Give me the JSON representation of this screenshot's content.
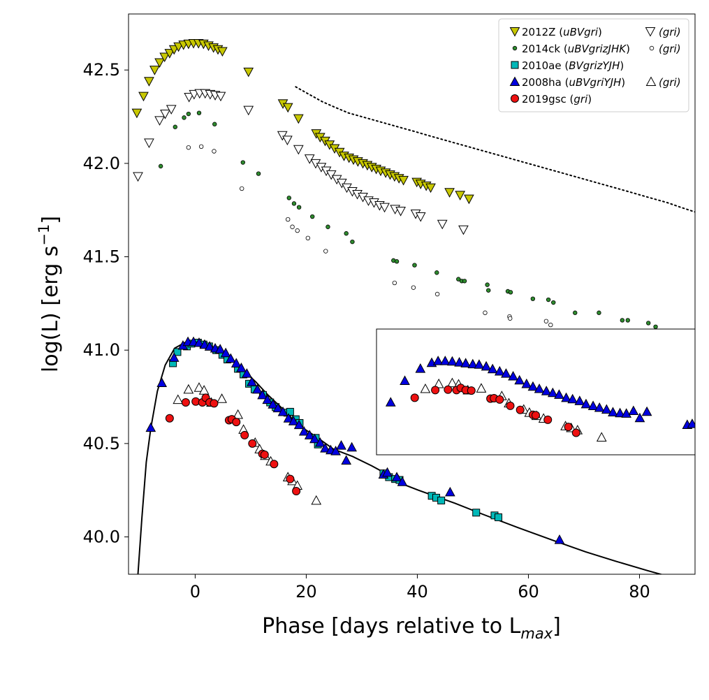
{
  "chart_data": {
    "type": "scatter",
    "xlabel": "Phase [days relative to L_max]",
    "xlabel_main": "Phase [days relative to L",
    "xlabel_sub": "max",
    "xlabel_end": "]",
    "ylabel": "log(L) [erg s^-1]",
    "ylabel_main": "log(L) [erg s",
    "ylabel_sup": "−1",
    "ylabel_end": "]",
    "xlim": [
      -12,
      90
    ],
    "ylim": [
      39.8,
      42.8
    ],
    "xticks": [
      0,
      20,
      40,
      60,
      80
    ],
    "xtick_labels": [
      "0",
      "20",
      "40",
      "60",
      "80"
    ],
    "yticks": [
      40.0,
      40.5,
      41.0,
      41.5,
      42.0,
      42.5
    ],
    "ytick_labels": [
      "40.0",
      "40.5",
      "41.0",
      "41.5",
      "42.0",
      "42.5"
    ],
    "legend_position": "top-right",
    "legend": {
      "sn2012Z_name": "2012Z (",
      "sn2012Z_bands": "uBVgri",
      "sn2012Z_alt": "(gri)",
      "sn2014ck_name": "2014ck (",
      "sn2014ck_bands": "uBVgrizJHK",
      "sn2014ck_alt": "(gri)",
      "sn2010ae_name": "2010ae (",
      "sn2010ae_bands": "BVgrizYJH",
      "sn2008ha_name": "2008ha (",
      "sn2008ha_bands": "uBVgriYJH",
      "sn2008ha_alt": "(gri)",
      "sn2019gsc_name": "2019gsc (",
      "sn2019gsc_bands": "gri",
      "close_paren": ")"
    },
    "series": [
      {
        "name": "2012Z uBVgri",
        "marker": "triangle-down",
        "color": "#c8c800",
        "x": [
          -10.5,
          -9.3,
          -8.3,
          -7.3,
          -6.4,
          -5.5,
          -4.6,
          -3.8,
          -3.0,
          -2.1,
          -1.2,
          -0.3,
          0.6,
          1.5,
          2.4,
          3.3,
          4.1,
          4.9,
          9.6,
          15.8,
          16.7,
          18.6,
          21.8,
          22.5,
          23.4,
          24.2,
          25.1,
          26.0,
          26.8,
          27.7,
          28.5,
          29.3,
          30.2,
          31.0,
          31.8,
          32.6,
          33.4,
          34.3,
          35.1,
          35.9,
          36.7,
          37.5,
          39.9,
          40.6,
          41.6,
          42.4,
          45.8,
          47.7,
          49.3
        ],
        "y": [
          42.27,
          42.36,
          42.44,
          42.5,
          42.54,
          42.57,
          42.59,
          42.61,
          42.625,
          42.635,
          42.64,
          42.643,
          42.643,
          42.64,
          42.63,
          42.62,
          42.61,
          42.6,
          42.49,
          42.32,
          42.3,
          42.24,
          42.16,
          42.14,
          42.12,
          42.1,
          42.08,
          42.06,
          42.04,
          42.03,
          42.02,
          42.01,
          42.0,
          41.99,
          41.98,
          41.97,
          41.96,
          41.95,
          41.94,
          41.93,
          41.92,
          41.91,
          41.9,
          41.89,
          41.88,
          41.87,
          41.845,
          41.83,
          41.81
        ]
      },
      {
        "name": "2012Z gri",
        "marker": "triangle-down-open",
        "color": "#ffffff",
        "x": [
          -10.3,
          -8.3,
          -6.4,
          -5.4,
          -4.3,
          -1.1,
          -0.2,
          0.8,
          1.8,
          2.7,
          3.6,
          4.6,
          9.6,
          15.7,
          16.6,
          18.6,
          20.6,
          21.7,
          22.7,
          23.6,
          24.5,
          25.5,
          26.4,
          27.3,
          28.3,
          29.2,
          30.2,
          31.2,
          32.2,
          33.2,
          34.1,
          36.0,
          37.0,
          39.7,
          40.6,
          44.5,
          48.3
        ],
        "y": [
          41.93,
          42.11,
          42.23,
          42.265,
          42.29,
          42.355,
          42.37,
          42.375,
          42.375,
          42.37,
          42.365,
          42.36,
          42.285,
          42.15,
          42.125,
          42.075,
          42.025,
          42.0,
          41.98,
          41.96,
          41.94,
          41.915,
          41.895,
          41.87,
          41.85,
          41.835,
          41.82,
          41.8,
          41.79,
          41.775,
          41.765,
          41.755,
          41.745,
          41.73,
          41.715,
          41.675,
          41.645
        ]
      },
      {
        "name": "2014ck uBVgrizJHK",
        "marker": "dot",
        "color": "#2e8b2e",
        "x": [
          -6.2,
          -3.6,
          -2.0,
          -1.2,
          0.7,
          3.5,
          8.6,
          11.4,
          16.9,
          17.8,
          18.7,
          21.1,
          23.9,
          27.2,
          28.3,
          35.7,
          36.3,
          39.5,
          43.5,
          47.4,
          48.0,
          48.5,
          52.6,
          52.8,
          56.3,
          56.8,
          60.8,
          63.6,
          64.5,
          68.4,
          72.7,
          76.9,
          77.9,
          81.6,
          82.9
        ],
        "y": [
          41.985,
          42.195,
          42.245,
          42.265,
          42.27,
          42.21,
          42.005,
          41.945,
          41.815,
          41.785,
          41.765,
          41.715,
          41.66,
          41.625,
          41.58,
          41.48,
          41.475,
          41.455,
          41.415,
          41.38,
          41.37,
          41.37,
          41.35,
          41.32,
          41.315,
          41.31,
          41.275,
          41.27,
          41.255,
          41.2,
          41.2,
          41.16,
          41.16,
          41.145,
          41.125
        ]
      },
      {
        "name": "2014ck gri",
        "marker": "dot-open",
        "color": "#ffffff",
        "x": [
          -1.2,
          1.1,
          3.4,
          8.4,
          16.7,
          17.5,
          18.4,
          20.3,
          23.5,
          35.9,
          39.3,
          43.6,
          52.2,
          56.6,
          56.7,
          63.2,
          64.0
        ],
        "y": [
          42.085,
          42.09,
          42.065,
          41.865,
          41.7,
          41.66,
          41.64,
          41.6,
          41.53,
          41.36,
          41.335,
          41.3,
          41.2,
          41.18,
          41.17,
          41.155,
          41.135
        ]
      },
      {
        "name": "2010ae BVgrizYJH",
        "marker": "square",
        "color": "#00b8b8",
        "x": [
          -4.0,
          -3.2,
          -1.5,
          -0.7,
          0.5,
          1.5,
          2.5,
          3.8,
          4.9,
          5.8,
          7.7,
          8.7,
          9.7,
          10.7,
          12.2,
          13.5,
          14.5,
          16.6,
          17.1,
          18.1,
          18.8,
          21.7,
          22.1,
          33.9,
          34.9,
          36.0,
          36.8,
          42.6,
          43.4,
          44.3,
          50.6,
          53.9,
          54.6
        ],
        "y": [
          40.93,
          40.99,
          41.02,
          41.035,
          41.04,
          41.03,
          41.02,
          41.0,
          40.975,
          40.95,
          40.9,
          40.87,
          40.82,
          40.79,
          40.76,
          40.72,
          40.695,
          40.665,
          40.67,
          40.63,
          40.61,
          40.53,
          40.495,
          40.34,
          40.32,
          40.31,
          40.305,
          40.22,
          40.21,
          40.195,
          40.13,
          40.115,
          40.105
        ]
      },
      {
        "name": "2008ha uBVgriYJH",
        "marker": "triangle-up",
        "color": "#0000e0",
        "x": [
          -8.0,
          -6.0,
          -3.8,
          -2.2,
          -1.3,
          -0.3,
          0.7,
          1.7,
          2.6,
          3.6,
          4.5,
          5.5,
          6.4,
          7.4,
          8.3,
          9.3,
          10.2,
          11.2,
          12.1,
          13.0,
          14.0,
          14.9,
          15.8,
          16.8,
          17.7,
          18.7,
          19.6,
          20.6,
          21.5,
          22.5,
          23.4,
          24.4,
          25.3,
          26.3,
          27.2,
          28.2,
          33.9,
          34.6,
          36.3,
          37.3,
          45.9,
          65.6
        ],
        "y": [
          40.585,
          40.825,
          40.96,
          41.025,
          41.045,
          41.045,
          41.04,
          41.03,
          41.02,
          41.01,
          41.005,
          40.985,
          40.955,
          40.93,
          40.905,
          40.875,
          40.83,
          40.79,
          40.76,
          40.735,
          40.71,
          40.69,
          40.67,
          40.635,
          40.62,
          40.6,
          40.565,
          40.545,
          40.525,
          40.505,
          40.475,
          40.465,
          40.46,
          40.49,
          40.41,
          40.48,
          40.335,
          40.345,
          40.32,
          40.295,
          40.24,
          39.985
        ]
      },
      {
        "name": "2008ha gri",
        "marker": "triangle-up-open",
        "color": "#ffffff",
        "x": [
          -3.1,
          -1.2,
          0.7,
          1.6,
          2.9,
          4.8,
          7.7,
          8.7,
          10.8,
          11.6,
          12.6,
          13.6,
          16.7,
          17.5,
          18.4,
          21.8
        ],
        "y": [
          40.735,
          40.79,
          40.8,
          40.785,
          40.72,
          40.74,
          40.655,
          40.575,
          40.505,
          40.47,
          40.435,
          40.405,
          40.32,
          40.3,
          40.275,
          40.195
        ]
      },
      {
        "name": "2019gsc gri",
        "marker": "circle",
        "color": "#ee1111",
        "x": [
          -4.6,
          -1.7,
          0.1,
          1.3,
          1.9,
          2.6,
          3.4,
          6.1,
          6.6,
          7.4,
          8.9,
          10.3,
          12.1,
          12.5,
          14.2,
          17.1,
          18.2
        ],
        "y": [
          40.635,
          40.72,
          40.725,
          40.72,
          40.745,
          40.72,
          40.715,
          40.625,
          40.63,
          40.615,
          40.545,
          40.5,
          40.445,
          40.44,
          40.39,
          40.31,
          40.245
        ]
      }
    ],
    "lines": [
      {
        "name": "model curve",
        "style": "solid",
        "color": "#000000",
        "x": [
          -10.3,
          -9.6,
          -8.8,
          -8.0,
          -6.8,
          -5.4,
          -3.7,
          -1.9,
          0.0,
          1.7,
          3.4,
          5.3,
          7.2,
          9.1,
          10.9,
          13.1,
          15.6,
          18.5,
          21.6,
          24.9,
          28.4,
          31.8,
          34.9,
          37.6,
          40.2,
          43.0,
          46.8,
          51.9,
          58.1,
          64.6,
          70.3,
          75.7,
          81.4,
          86.2,
          90.0
        ],
        "y": [
          39.8,
          40.1,
          40.4,
          40.58,
          40.78,
          40.92,
          41.01,
          41.04,
          41.05,
          41.04,
          41.01,
          40.98,
          40.93,
          40.88,
          40.83,
          40.76,
          40.69,
          40.6,
          40.54,
          40.47,
          40.43,
          40.38,
          40.33,
          40.28,
          40.25,
          40.22,
          40.18,
          40.12,
          40.05,
          39.98,
          39.92,
          39.87,
          39.82,
          39.78,
          39.74
        ]
      },
      {
        "name": "dotted reference",
        "style": "dotted",
        "color": "#000000",
        "x": [
          18.1,
          20.5,
          22.9,
          25.2,
          27.6,
          30.0,
          32.4,
          34.8,
          37.2,
          39.6,
          41.9,
          44.3,
          46.7,
          49.1,
          51.5,
          53.9,
          56.3,
          58.7,
          61.1,
          63.5,
          65.9,
          68.3,
          70.7,
          73.1,
          75.5,
          77.9,
          80.2,
          82.6,
          85.0,
          87.4,
          90.0
        ],
        "y": [
          42.41,
          42.37,
          42.33,
          42.3,
          42.27,
          42.25,
          42.23,
          42.21,
          42.19,
          42.17,
          42.15,
          42.13,
          42.11,
          42.09,
          42.07,
          42.05,
          42.03,
          42.01,
          41.99,
          41.97,
          41.95,
          41.93,
          41.91,
          41.89,
          41.87,
          41.85,
          41.83,
          41.81,
          41.79,
          41.765,
          41.74
        ]
      }
    ],
    "inset": {
      "x_range": [
        -10,
        35
      ],
      "y_range": [
        40.0,
        41.4
      ],
      "series": [
        "2008ha uBVgriYJH",
        "2008ha gri",
        "2019gsc gri"
      ]
    }
  }
}
